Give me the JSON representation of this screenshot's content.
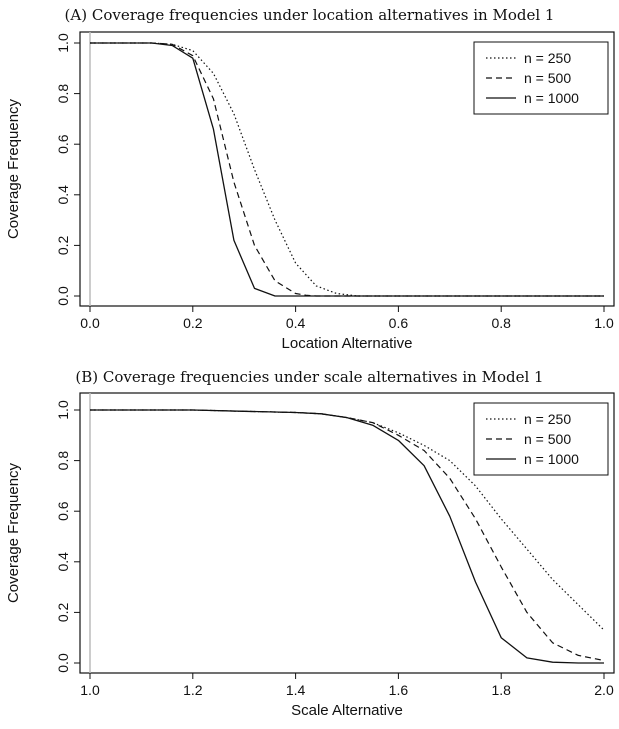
{
  "chart_data": [
    {
      "type": "line",
      "title": "(A) Coverage frequencies under location alternatives in Model 1",
      "xlabel": "Location Alternative",
      "ylabel": "Coverage Frequency",
      "xlim": [
        0,
        1
      ],
      "ylim": [
        0,
        1
      ],
      "xticks": [
        "0.0",
        "0.2",
        "0.4",
        "0.6",
        "0.8",
        "1.0"
      ],
      "xtick_values": [
        0,
        0.2,
        0.4,
        0.6,
        0.8,
        1.0
      ],
      "yticks": [
        "0.0",
        "0.2",
        "0.4",
        "0.6",
        "0.8",
        "1.0"
      ],
      "ytick_values": [
        0,
        0.2,
        0.4,
        0.6,
        0.8,
        1.0
      ],
      "legend_position": "top-right",
      "series": [
        {
          "name": "n = 250",
          "style": "dotted",
          "x": [
            0,
            0.12,
            0.16,
            0.2,
            0.24,
            0.28,
            0.32,
            0.36,
            0.4,
            0.44,
            0.48,
            0.5,
            0.52,
            0.6,
            0.8,
            1.0
          ],
          "y": [
            1.0,
            1.0,
            0.995,
            0.97,
            0.88,
            0.72,
            0.5,
            0.3,
            0.13,
            0.04,
            0.01,
            0.005,
            0,
            0,
            0,
            0
          ]
        },
        {
          "name": "n = 500",
          "style": "dashed",
          "x": [
            0,
            0.12,
            0.16,
            0.2,
            0.24,
            0.28,
            0.32,
            0.36,
            0.4,
            0.42,
            0.44,
            0.6,
            0.8,
            1.0
          ],
          "y": [
            1.0,
            1.0,
            0.995,
            0.95,
            0.78,
            0.45,
            0.2,
            0.06,
            0.01,
            0.003,
            0,
            0,
            0,
            0
          ]
        },
        {
          "name": "n = 1000",
          "style": "solid",
          "x": [
            0,
            0.12,
            0.16,
            0.2,
            0.24,
            0.28,
            0.32,
            0.36,
            0.4,
            0.6,
            0.8,
            1.0
          ],
          "y": [
            1.0,
            1.0,
            0.99,
            0.94,
            0.66,
            0.22,
            0.03,
            0,
            0,
            0,
            0,
            0
          ]
        }
      ]
    },
    {
      "type": "line",
      "title": "(B) Coverage frequencies under scale alternatives in Model 1",
      "xlabel": "Scale Alternative",
      "ylabel": "Coverage Frequency",
      "xlim": [
        1,
        2
      ],
      "ylim": [
        0,
        1
      ],
      "xticks": [
        "1.0",
        "1.2",
        "1.4",
        "1.6",
        "1.8",
        "2.0"
      ],
      "xtick_values": [
        1.0,
        1.2,
        1.4,
        1.6,
        1.8,
        2.0
      ],
      "yticks": [
        "0.0",
        "0.2",
        "0.4",
        "0.6",
        "0.8",
        "1.0"
      ],
      "ytick_values": [
        0,
        0.2,
        0.4,
        0.6,
        0.8,
        1.0
      ],
      "legend_position": "top-right",
      "series": [
        {
          "name": "n = 250",
          "style": "dotted",
          "x": [
            1.0,
            1.1,
            1.2,
            1.3,
            1.4,
            1.45,
            1.5,
            1.55,
            1.6,
            1.65,
            1.7,
            1.75,
            1.8,
            1.85,
            1.9,
            1.95,
            2.0
          ],
          "y": [
            1.0,
            1.0,
            1.0,
            0.995,
            0.99,
            0.985,
            0.97,
            0.95,
            0.91,
            0.86,
            0.8,
            0.7,
            0.57,
            0.45,
            0.33,
            0.23,
            0.13
          ]
        },
        {
          "name": "n = 500",
          "style": "dashed",
          "x": [
            1.0,
            1.1,
            1.2,
            1.3,
            1.4,
            1.45,
            1.5,
            1.55,
            1.6,
            1.65,
            1.7,
            1.75,
            1.8,
            1.85,
            1.9,
            1.95,
            2.0
          ],
          "y": [
            1.0,
            1.0,
            1.0,
            0.995,
            0.99,
            0.985,
            0.97,
            0.95,
            0.9,
            0.84,
            0.73,
            0.57,
            0.38,
            0.2,
            0.08,
            0.03,
            0.01
          ]
        },
        {
          "name": "n = 1000",
          "style": "solid",
          "x": [
            1.0,
            1.1,
            1.2,
            1.3,
            1.4,
            1.45,
            1.5,
            1.55,
            1.6,
            1.65,
            1.7,
            1.75,
            1.8,
            1.85,
            1.9,
            1.95,
            2.0
          ],
          "y": [
            1.0,
            1.0,
            1.0,
            0.995,
            0.99,
            0.985,
            0.97,
            0.94,
            0.88,
            0.78,
            0.58,
            0.32,
            0.1,
            0.02,
            0.003,
            0,
            0
          ]
        }
      ]
    }
  ]
}
